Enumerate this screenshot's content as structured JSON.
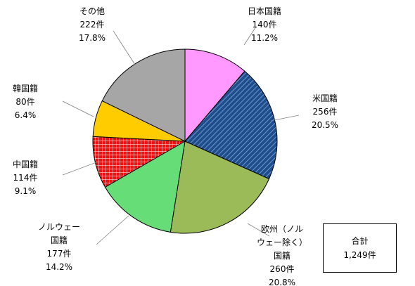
{
  "chart_data": {
    "type": "pie",
    "start_angle_deg": 90,
    "direction": "clockwise",
    "slices": [
      {
        "label_lines": [
          "日本国籍"
        ],
        "count": 140,
        "count_text": "140件",
        "percent": 11.2,
        "percent_text": "11.2%",
        "color": "#ff99ff",
        "pattern": "none"
      },
      {
        "label_lines": [
          "米国籍"
        ],
        "count": 256,
        "count_text": "256件",
        "percent": 20.5,
        "percent_text": "20.5%",
        "color": "#1f4e8c",
        "pattern": "diagonal-hatch"
      },
      {
        "label_lines": [
          "欧州（ノル",
          "ウェー除く）",
          "国籍"
        ],
        "count": 260,
        "count_text": "260件",
        "percent": 20.8,
        "percent_text": "20.8%",
        "color": "#9bbb59",
        "pattern": "none"
      },
      {
        "label_lines": [
          "ノルウェー",
          "国籍"
        ],
        "count": 177,
        "count_text": "177件",
        "percent": 14.2,
        "percent_text": "14.2%",
        "color": "#66dd77",
        "pattern": "none"
      },
      {
        "label_lines": [
          "中国籍"
        ],
        "count": 114,
        "count_text": "114件",
        "percent": 9.1,
        "percent_text": "9.1%",
        "color": "#ee1111",
        "pattern": "grid"
      },
      {
        "label_lines": [
          "韓国籍"
        ],
        "count": 80,
        "count_text": "80件",
        "percent": 6.4,
        "percent_text": "6.4%",
        "color": "#ffcc00",
        "pattern": "none"
      },
      {
        "label_lines": [
          "その他"
        ],
        "count": 222,
        "count_text": "222件",
        "percent": 17.8,
        "percent_text": "17.8%",
        "color": "#a6a6a6",
        "pattern": "none"
      }
    ],
    "total": {
      "label": "合計",
      "value": 1249,
      "value_text": "1,249件"
    }
  }
}
